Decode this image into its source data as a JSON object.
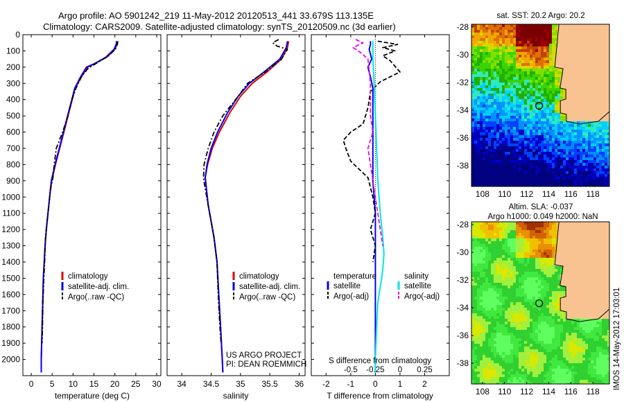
{
  "header": {
    "line1": "Argo profile: AO 5901242_219 11-May-2012 20120513_441 33.679S 113.135E",
    "line2": "Climatology: CARS2009. Satellite-adjusted climatology: synTS_20120509.nc (3d earlier)"
  },
  "colors": {
    "climatology": "#dd0000",
    "satellite": "#0000ee",
    "argo": "#000000",
    "salinity_satellite": "#00e5e5",
    "salinity_argo": "#ee00ee",
    "land": "#f9c291"
  },
  "footer": {
    "project": "US ARGO PROJECT",
    "pi": "PI: DEAN ROEMMICH",
    "timestamp": "IMOS 14-May-2012 17:03:01"
  },
  "chart_data": [
    {
      "type": "line",
      "name": "temperature-profile",
      "xlabel": "temperature (deg C)",
      "ylabel": "",
      "xlim": [
        -2,
        31
      ],
      "ylim": [
        2100,
        0
      ],
      "xticks": [
        0,
        5,
        10,
        15,
        20,
        25,
        30
      ],
      "yticks": [
        0,
        100,
        200,
        300,
        400,
        500,
        600,
        700,
        800,
        900,
        1000,
        1100,
        1200,
        1300,
        1400,
        1500,
        1600,
        1700,
        1800,
        1900,
        2000
      ],
      "legend": [
        "climatology",
        "satellite-adj. clim.",
        "Argo(..raw -QC)"
      ],
      "legend_position": "middle-center",
      "series": [
        {
          "name": "climatology",
          "color": "#dd0000",
          "style": "solid",
          "points": [
            [
              20.6,
              40
            ],
            [
              20.5,
              60
            ],
            [
              20.0,
              90
            ],
            [
              18.0,
              140
            ],
            [
              15.0,
              180
            ],
            [
              13.5,
              200
            ],
            [
              12.0,
              260
            ],
            [
              10.5,
              330
            ],
            [
              9.8,
              400
            ],
            [
              8.8,
              500
            ],
            [
              7.8,
              600
            ],
            [
              6.8,
              700
            ],
            [
              5.8,
              800
            ],
            [
              4.9,
              900
            ],
            [
              4.4,
              1000
            ],
            [
              4.0,
              1100
            ],
            [
              3.6,
              1200
            ],
            [
              3.3,
              1300
            ],
            [
              3.1,
              1400
            ],
            [
              2.9,
              1500
            ],
            [
              2.8,
              1600
            ],
            [
              2.7,
              1700
            ],
            [
              2.6,
              1800
            ],
            [
              2.5,
              1900
            ],
            [
              2.4,
              2000
            ],
            [
              2.4,
              2080
            ]
          ]
        },
        {
          "name": "satellite-adj. clim.",
          "color": "#0000ee",
          "style": "solid",
          "points": [
            [
              20.4,
              40
            ],
            [
              20.3,
              60
            ],
            [
              19.8,
              90
            ],
            [
              17.8,
              140
            ],
            [
              15.0,
              180
            ],
            [
              13.2,
              200
            ],
            [
              11.8,
              260
            ],
            [
              10.4,
              330
            ],
            [
              9.7,
              400
            ],
            [
              8.7,
              500
            ],
            [
              7.7,
              600
            ],
            [
              6.7,
              700
            ],
            [
              5.7,
              800
            ],
            [
              4.8,
              900
            ],
            [
              4.4,
              1000
            ],
            [
              4.0,
              1100
            ],
            [
              3.6,
              1200
            ],
            [
              3.3,
              1300
            ],
            [
              3.1,
              1400
            ],
            [
              2.9,
              1500
            ],
            [
              2.8,
              1600
            ],
            [
              2.7,
              1700
            ],
            [
              2.6,
              1800
            ],
            [
              2.5,
              1900
            ],
            [
              2.4,
              2000
            ],
            [
              2.4,
              2080
            ]
          ]
        },
        {
          "name": "Argo(..raw -QC)",
          "color": "#000000",
          "style": "dashdot",
          "points": [
            [
              20.7,
              40
            ],
            [
              20.6,
              60
            ],
            [
              20.1,
              90
            ],
            [
              18.5,
              130
            ],
            [
              16.0,
              170
            ],
            [
              13.5,
              210
            ],
            [
              12.0,
              260
            ],
            [
              10.7,
              330
            ],
            [
              9.7,
              400
            ],
            [
              8.8,
              500
            ],
            [
              7.5,
              600
            ],
            [
              6.0,
              700
            ],
            [
              5.5,
              800
            ],
            [
              5.2,
              880
            ],
            [
              4.6,
              950
            ],
            [
              4.2,
              1050
            ],
            [
              3.8,
              1150
            ],
            [
              3.4,
              1250
            ],
            [
              3.2,
              1400
            ],
            [
              3.0,
              1500
            ],
            [
              2.8,
              1650
            ],
            [
              2.7,
              1800
            ],
            [
              2.6,
              1900
            ]
          ]
        }
      ]
    },
    {
      "type": "line",
      "name": "salinity-profile",
      "xlabel": "salinity",
      "ylabel": "",
      "xlim": [
        33.75,
        36.1
      ],
      "ylim": [
        2100,
        0
      ],
      "xticks": [
        34,
        34.5,
        35,
        35.5,
        36
      ],
      "legend": [
        "climatology",
        "satellite-adj. clim.",
        "Argo(..raw -QC)"
      ],
      "legend_position": "middle-center",
      "series": [
        {
          "name": "climatology",
          "color": "#dd0000",
          "style": "solid",
          "points": [
            [
              35.82,
              40
            ],
            [
              35.8,
              80
            ],
            [
              35.7,
              150
            ],
            [
              35.45,
              230
            ],
            [
              35.2,
              300
            ],
            [
              35.0,
              380
            ],
            [
              34.82,
              480
            ],
            [
              34.64,
              600
            ],
            [
              34.52,
              700
            ],
            [
              34.44,
              800
            ],
            [
              34.4,
              880
            ],
            [
              34.42,
              950
            ],
            [
              34.45,
              1050
            ],
            [
              34.5,
              1150
            ],
            [
              34.55,
              1250
            ],
            [
              34.6,
              1400
            ],
            [
              34.63,
              1600
            ],
            [
              34.66,
              1800
            ],
            [
              34.69,
              2000
            ],
            [
              34.7,
              2080
            ]
          ]
        },
        {
          "name": "satellite-adj. clim.",
          "color": "#0000ee",
          "style": "solid",
          "points": [
            [
              35.8,
              40
            ],
            [
              35.78,
              80
            ],
            [
              35.67,
              150
            ],
            [
              35.4,
              230
            ],
            [
              35.15,
              300
            ],
            [
              34.96,
              380
            ],
            [
              34.78,
              480
            ],
            [
              34.61,
              600
            ],
            [
              34.5,
              700
            ],
            [
              34.43,
              800
            ],
            [
              34.4,
              880
            ],
            [
              34.42,
              950
            ],
            [
              34.45,
              1050
            ],
            [
              34.5,
              1150
            ],
            [
              34.55,
              1250
            ],
            [
              34.6,
              1400
            ],
            [
              34.63,
              1600
            ],
            [
              34.66,
              1800
            ],
            [
              34.69,
              2000
            ],
            [
              34.7,
              2080
            ]
          ]
        },
        {
          "name": "Argo(..raw -QC)",
          "color": "#000000",
          "style": "dashdot",
          "points": [
            [
              35.65,
              30
            ],
            [
              35.55,
              50
            ],
            [
              35.62,
              70
            ],
            [
              35.8,
              90
            ],
            [
              35.7,
              150
            ],
            [
              35.42,
              230
            ],
            [
              35.12,
              300
            ],
            [
              34.96,
              380
            ],
            [
              34.7,
              500
            ],
            [
              34.55,
              600
            ],
            [
              34.45,
              700
            ],
            [
              34.38,
              800
            ],
            [
              34.37,
              880
            ],
            [
              34.4,
              950
            ],
            [
              34.45,
              1050
            ],
            [
              34.5,
              1150
            ],
            [
              34.55,
              1250
            ],
            [
              34.6,
              1400
            ],
            [
              34.62,
              1600
            ],
            [
              34.65,
              1800
            ],
            [
              34.67,
              1900
            ]
          ]
        }
      ]
    },
    {
      "type": "line",
      "name": "difference-profile",
      "xlabel": "T difference from climatology",
      "xlabel2": "S difference from climatology",
      "ylabel": "",
      "xlim": [
        -2.6,
        3.0
      ],
      "ylim": [
        2100,
        0
      ],
      "xticks": [
        -2,
        -1,
        0,
        1,
        2
      ],
      "xticks2_labels": [
        "-0.5",
        "-0.25",
        "0",
        "0.25",
        "0.5"
      ],
      "legend_temperature_title": "temperature",
      "legend_salinity_title": "salinity",
      "legend": [
        "satellite",
        "Argo(-adj)",
        "satellite",
        "Argo(-adj)"
      ],
      "legend_position": "middle-center",
      "series": [
        {
          "name": "temperature satellite",
          "color": "#0000ee",
          "style": "solid",
          "points": [
            [
              -0.2,
              40
            ],
            [
              -0.2,
              60
            ],
            [
              -0.25,
              90
            ],
            [
              -0.15,
              150
            ],
            [
              -0.3,
              200
            ],
            [
              -0.2,
              260
            ],
            [
              -0.1,
              330
            ],
            [
              -0.1,
              400
            ],
            [
              -0.1,
              500
            ],
            [
              -0.1,
              600
            ],
            [
              -0.1,
              700
            ],
            [
              -0.1,
              800
            ],
            [
              -0.1,
              900
            ],
            [
              -0.05,
              1000
            ],
            [
              0,
              1100
            ],
            [
              0,
              1300
            ],
            [
              0,
              1500
            ],
            [
              0,
              1700
            ],
            [
              0,
              1900
            ],
            [
              0,
              2080
            ]
          ]
        },
        {
          "name": "temperature Argo(-adj)",
          "color": "#000000",
          "style": "dashed",
          "points": [
            [
              0.1,
              40
            ],
            [
              0.9,
              60
            ],
            [
              0.3,
              80
            ],
            [
              0.8,
              100
            ],
            [
              0.3,
              130
            ],
            [
              0.6,
              160
            ],
            [
              1.0,
              230
            ],
            [
              0.2,
              290
            ],
            [
              -0.2,
              350
            ],
            [
              -0.3,
              450
            ],
            [
              -0.5,
              550
            ],
            [
              -1.0,
              600
            ],
            [
              -1.3,
              650
            ],
            [
              -1.2,
              700
            ],
            [
              -1.0,
              780
            ],
            [
              -0.3,
              880
            ],
            [
              -0.1,
              1000
            ],
            [
              0,
              1100
            ],
            [
              -0.2,
              1200
            ],
            [
              0,
              1300
            ],
            [
              -0.1,
              1400
            ]
          ]
        },
        {
          "name": "salinity satellite",
          "color": "#00e5e5",
          "style": "solid",
          "points": [
            [
              -0.1,
              40
            ],
            [
              -0.1,
              80
            ],
            [
              -0.1,
              150
            ],
            [
              -0.05,
              300
            ],
            [
              0,
              500
            ],
            [
              0.05,
              700
            ],
            [
              0.1,
              900
            ],
            [
              0.2,
              1100
            ],
            [
              0.3,
              1250
            ],
            [
              0.35,
              1350
            ],
            [
              0.3,
              1450
            ],
            [
              0.2,
              1550
            ],
            [
              0.1,
              1650
            ],
            [
              0.05,
              1800
            ],
            [
              0,
              2000
            ],
            [
              0,
              2080
            ]
          ]
        },
        {
          "name": "salinity Argo(-adj)",
          "color": "#ee00ee",
          "style": "dashed",
          "points": [
            [
              -0.8,
              30
            ],
            [
              -0.5,
              50
            ],
            [
              -0.9,
              80
            ],
            [
              -0.6,
              110
            ],
            [
              -0.3,
              150
            ],
            [
              -0.2,
              300
            ],
            [
              -0.2,
              500
            ],
            [
              -0.1,
              600
            ],
            [
              -0.3,
              700
            ],
            [
              -0.2,
              800
            ],
            [
              -0.1,
              900
            ],
            [
              0,
              1000
            ],
            [
              0.1,
              1100
            ],
            [
              0.2,
              1200
            ],
            [
              0.3,
              1300
            ]
          ]
        }
      ]
    },
    {
      "type": "heatmap",
      "name": "sst-map",
      "title": "sat. SST: 20.2  Argo: 20.2",
      "xlim": [
        107,
        119.5
      ],
      "ylim": [
        -39.5,
        -27.8
      ],
      "xticks": [
        108,
        110,
        112,
        114,
        116,
        118
      ],
      "yticks": [
        -28,
        -30,
        -32,
        -34,
        -36,
        -38
      ],
      "argo_location": [
        113.135,
        -33.679
      ]
    },
    {
      "type": "heatmap",
      "name": "sla-map",
      "title": "Altim. SLA: -0.037",
      "subtitle": "Argo h1000: 0.049 h2000: NaN",
      "xlim": [
        107,
        119.5
      ],
      "ylim": [
        -39.5,
        -27.8
      ],
      "xticks": [
        108,
        110,
        112,
        114,
        116,
        118
      ],
      "yticks": [
        -28,
        -30,
        -32,
        -34,
        -36,
        -38
      ],
      "argo_location": [
        113.135,
        -33.679
      ]
    }
  ]
}
